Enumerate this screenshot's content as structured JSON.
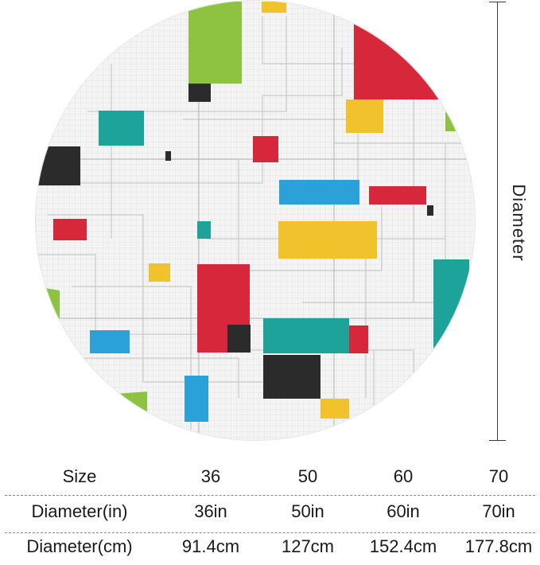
{
  "dimension_label": "Diameter",
  "colors": {
    "background": "#ffffff",
    "rug_base": "#f3f3f3",
    "red": "#d6283a",
    "yellow": "#f2c22c",
    "blue": "#2aa1d8",
    "teal": "#1ea39a",
    "green": "#8ec342",
    "black": "#2b2b2b"
  },
  "size_table": {
    "rows": [
      {
        "label": "Size",
        "values": [
          "36",
          "50",
          "60",
          "70"
        ]
      },
      {
        "label": "Diameter(in)",
        "values": [
          "36in",
          "50in",
          "60in",
          "70in"
        ]
      },
      {
        "label": "Diameter(cm)",
        "values": [
          "91.4cm",
          "127cm",
          "152.4cm",
          "177.8cm"
        ]
      }
    ]
  }
}
